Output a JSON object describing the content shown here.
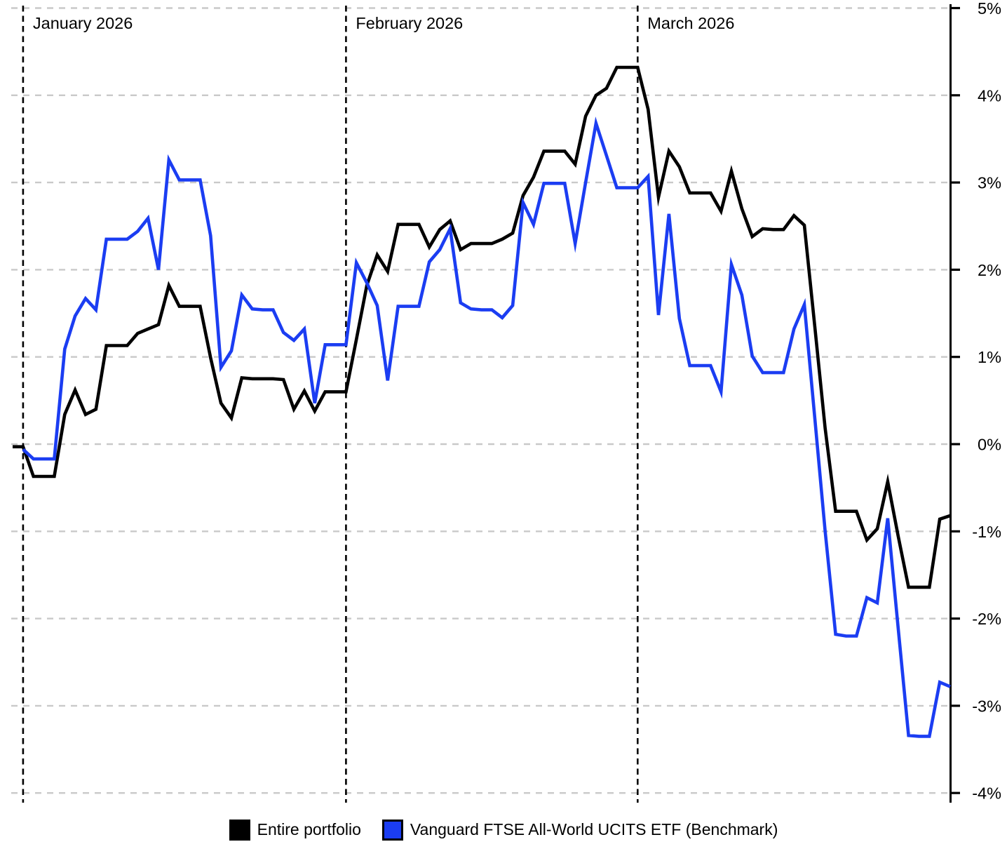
{
  "chart_data": {
    "type": "line",
    "title": "",
    "legend_position": "bottom-center",
    "grid": {
      "horizontal_gridlines": "dashed",
      "gridline_color": "#c9c9c9",
      "month_separators": "dashed-vertical-black"
    },
    "y_axis": {
      "side": "right",
      "unit": "%",
      "min": -4,
      "max": 5,
      "ticks": [
        {
          "value": 5,
          "label": "5%"
        },
        {
          "value": 4,
          "label": "4%"
        },
        {
          "value": 3,
          "label": "3%"
        },
        {
          "value": 2,
          "label": "2%"
        },
        {
          "value": 1,
          "label": "1%"
        },
        {
          "value": 0,
          "label": "0%"
        },
        {
          "value": -1,
          "label": "-1%"
        },
        {
          "value": -2,
          "label": "-2%"
        },
        {
          "value": -3,
          "label": "-3%"
        },
        {
          "value": -4,
          "label": "-4%"
        }
      ]
    },
    "x_axis": {
      "unit": "day-index",
      "points": 91,
      "month_markers": [
        {
          "index": 1,
          "label": "January 2026"
        },
        {
          "index": 32,
          "label": "February 2026"
        },
        {
          "index": 60,
          "label": "March 2026"
        }
      ]
    },
    "series": [
      {
        "name": "Entire portfolio",
        "color": "#000000",
        "values": [
          -0.03,
          -0.03,
          -0.37,
          -0.37,
          -0.37,
          0.34,
          0.62,
          0.34,
          0.4,
          1.13,
          1.13,
          1.13,
          1.27,
          1.32,
          1.37,
          1.82,
          1.58,
          1.58,
          1.58,
          0.99,
          0.47,
          0.3,
          0.76,
          0.75,
          0.75,
          0.75,
          0.74,
          0.4,
          0.61,
          0.38,
          0.6,
          0.6,
          0.6,
          1.2,
          1.82,
          2.17,
          1.98,
          2.52,
          2.52,
          2.52,
          2.26,
          2.46,
          2.56,
          2.23,
          2.3,
          2.3,
          2.3,
          2.35,
          2.42,
          2.85,
          3.06,
          3.36,
          3.36,
          3.36,
          3.21,
          3.76,
          4.0,
          4.08,
          4.32,
          4.32,
          4.32,
          3.84,
          2.83,
          3.36,
          3.18,
          2.88,
          2.88,
          2.88,
          2.67,
          3.13,
          2.7,
          2.38,
          2.47,
          2.46,
          2.46,
          2.62,
          2.51,
          1.35,
          0.18,
          -0.77,
          -0.77,
          -0.77,
          -1.1,
          -0.97,
          -0.43,
          -1.05,
          -1.64,
          -1.64,
          -1.64,
          -0.86,
          -0.82
        ]
      },
      {
        "name": "Vanguard FTSE All-World UCITS ETF (Benchmark)",
        "color": "#1b3df2",
        "values": [
          null,
          -0.06,
          -0.17,
          -0.17,
          -0.17,
          1.09,
          1.47,
          1.67,
          1.54,
          2.35,
          2.35,
          2.35,
          2.44,
          2.59,
          2.0,
          3.26,
          3.03,
          3.03,
          3.03,
          2.39,
          0.88,
          1.07,
          1.71,
          1.55,
          1.54,
          1.54,
          1.28,
          1.19,
          1.32,
          0.47,
          1.14,
          1.14,
          1.14,
          2.08,
          1.85,
          1.59,
          0.73,
          1.58,
          1.58,
          1.58,
          2.09,
          2.23,
          2.47,
          1.62,
          1.55,
          1.54,
          1.54,
          1.45,
          1.59,
          2.77,
          2.52,
          2.99,
          2.99,
          2.99,
          2.3,
          3.0,
          3.68,
          3.31,
          2.94,
          2.94,
          2.94,
          3.07,
          1.48,
          2.64,
          1.44,
          0.9,
          0.9,
          0.9,
          0.6,
          2.06,
          1.71,
          1.01,
          0.82,
          0.82,
          0.82,
          1.32,
          1.6,
          0.3,
          -1.0,
          -2.18,
          -2.2,
          -2.2,
          -1.76,
          -1.82,
          -0.85,
          -2.1,
          -3.34,
          -3.35,
          -3.35,
          -2.73,
          -2.78
        ]
      }
    ]
  }
}
